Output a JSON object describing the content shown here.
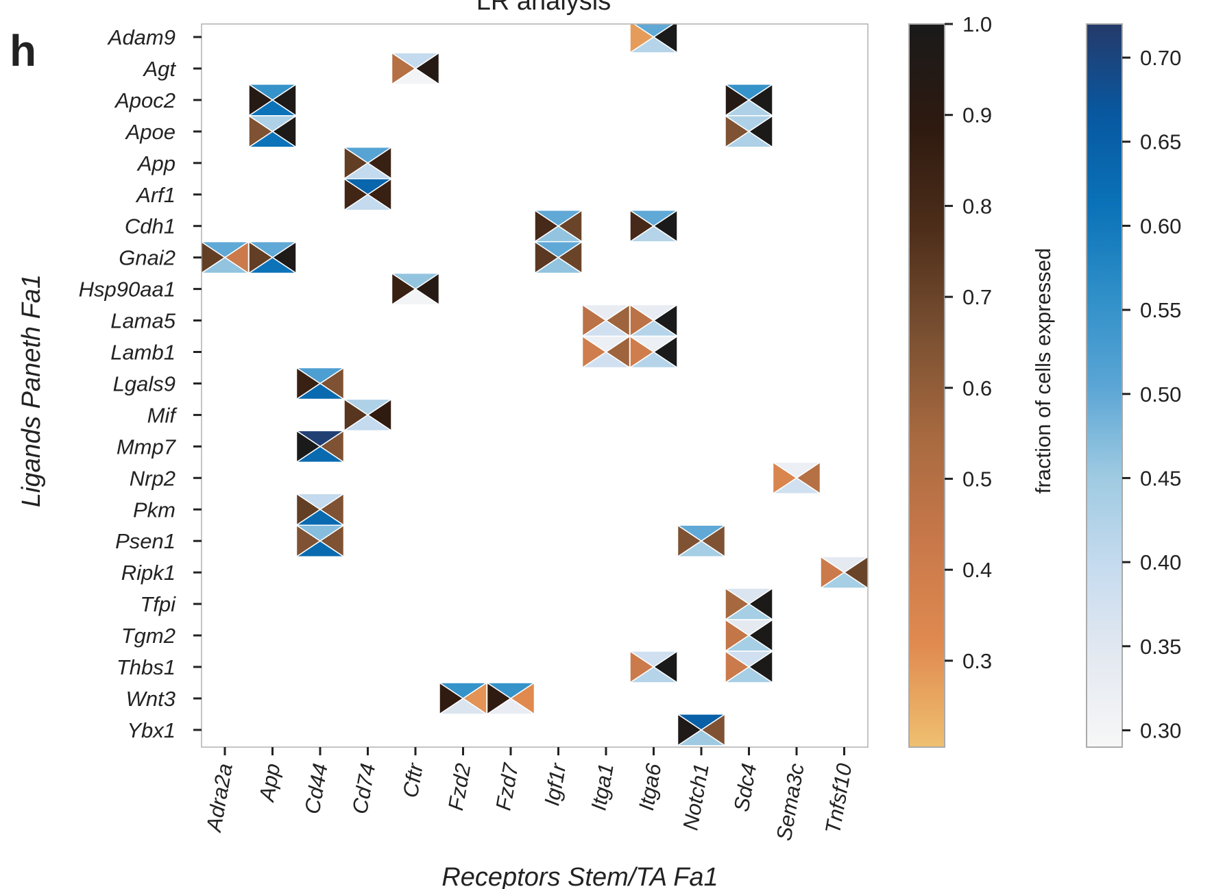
{
  "panel_letter": "h",
  "chart_data": {
    "type": "heatmap",
    "title": "LR analysis",
    "xlabel": "Receptors Stem/TA  Fa1",
    "ylabel": "Ligands Paneth  Fa1",
    "x_categories": [
      "Adra2a",
      "App",
      "Cd44",
      "Cd74",
      "Cftr",
      "Fzd2",
      "Fzd7",
      "Igf1r",
      "Itga1",
      "Itga6",
      "Notch1",
      "Sdc4",
      "Sema3c",
      "Tnfsf10"
    ],
    "y_categories": [
      "Adam9",
      "Agt",
      "Apoc2",
      "Apoe",
      "App",
      "Arf1",
      "Cdh1",
      "Gnai2",
      "Hsp90aa1",
      "Lama5",
      "Lamb1",
      "Lgals9",
      "Mif",
      "Mmp7",
      "Nrp2",
      "Pkm",
      "Psen1",
      "Ripk1",
      "Tfpi",
      "Tgm2",
      "Thbs1",
      "Wnt3",
      "Ybx1"
    ],
    "cell_encoding": {
      "left": "ligand fraction of cells expressed",
      "right": "receptor fraction of cells expressed",
      "top": "blue scale value",
      "bottom": "blue scale value"
    },
    "cells": [
      {
        "ligand": "Adam9",
        "receptor": "Itga6",
        "left": 0.28,
        "right": 1.0,
        "top": 0.5,
        "bottom": 0.42
      },
      {
        "ligand": "Agt",
        "receptor": "Cftr",
        "left": 0.5,
        "right": 0.93,
        "top": 0.4,
        "bottom": 0.3
      },
      {
        "ligand": "Apoc2",
        "receptor": "App",
        "left": 0.93,
        "right": 0.98,
        "top": 0.55,
        "bottom": 0.61
      },
      {
        "ligand": "Apoc2",
        "receptor": "Sdc4",
        "left": 0.93,
        "right": 0.99,
        "top": 0.55,
        "bottom": 0.43
      },
      {
        "ligand": "Apoe",
        "receptor": "App",
        "left": 0.65,
        "right": 0.98,
        "top": 0.43,
        "bottom": 0.61
      },
      {
        "ligand": "Apoe",
        "receptor": "Sdc4",
        "left": 0.65,
        "right": 0.99,
        "top": 0.43,
        "bottom": 0.43
      },
      {
        "ligand": "App",
        "receptor": "Cd74",
        "left": 0.72,
        "right": 0.85,
        "top": 0.51,
        "bottom": 0.4
      },
      {
        "ligand": "Arf1",
        "receptor": "Cd74",
        "left": 0.82,
        "right": 0.85,
        "top": 0.64,
        "bottom": 0.4
      },
      {
        "ligand": "Cdh1",
        "receptor": "Igf1r",
        "left": 0.8,
        "right": 0.7,
        "top": 0.5,
        "bottom": 0.46
      },
      {
        "ligand": "Cdh1",
        "receptor": "Itga6",
        "left": 0.8,
        "right": 1.0,
        "top": 0.5,
        "bottom": 0.42
      },
      {
        "ligand": "Gnai2",
        "receptor": "Adra2a",
        "left": 0.72,
        "right": 0.42,
        "top": 0.5,
        "bottom": 0.46
      },
      {
        "ligand": "Gnai2",
        "receptor": "App",
        "left": 0.72,
        "right": 0.98,
        "top": 0.5,
        "bottom": 0.61
      },
      {
        "ligand": "Gnai2",
        "receptor": "Igf1r",
        "left": 0.74,
        "right": 0.7,
        "top": 0.5,
        "bottom": 0.46
      },
      {
        "ligand": "Hsp90aa1",
        "receptor": "Cftr",
        "left": 0.85,
        "right": 0.93,
        "top": 0.46,
        "bottom": 0.3
      },
      {
        "ligand": "Lama5",
        "receptor": "Itga1",
        "left": 0.48,
        "right": 0.57,
        "top": 0.33,
        "bottom": 0.38
      },
      {
        "ligand": "Lama5",
        "receptor": "Itga6",
        "left": 0.48,
        "right": 1.0,
        "top": 0.33,
        "bottom": 0.42
      },
      {
        "ligand": "Lamb1",
        "receptor": "Itga1",
        "left": 0.4,
        "right": 0.57,
        "top": 0.32,
        "bottom": 0.38
      },
      {
        "ligand": "Lamb1",
        "receptor": "Itga6",
        "left": 0.4,
        "right": 1.0,
        "top": 0.32,
        "bottom": 0.42
      },
      {
        "ligand": "Lgals9",
        "receptor": "Cd44",
        "left": 0.85,
        "right": 0.65,
        "top": 0.52,
        "bottom": 0.63
      },
      {
        "ligand": "Mif",
        "receptor": "Cd74",
        "left": 0.75,
        "right": 0.88,
        "top": 0.43,
        "bottom": 0.4
      },
      {
        "ligand": "Mmp7",
        "receptor": "Cd44",
        "left": 1.0,
        "right": 0.65,
        "top": 0.71,
        "bottom": 0.63
      },
      {
        "ligand": "Nrp2",
        "receptor": "Sema3c",
        "left": 0.35,
        "right": 0.5,
        "top": 0.32,
        "bottom": 0.38
      },
      {
        "ligand": "Pkm",
        "receptor": "Cd44",
        "left": 0.72,
        "right": 0.65,
        "top": 0.4,
        "bottom": 0.63
      },
      {
        "ligand": "Psen1",
        "receptor": "Cd44",
        "left": 0.65,
        "right": 0.65,
        "top": 0.47,
        "bottom": 0.63
      },
      {
        "ligand": "Psen1",
        "receptor": "Notch1",
        "left": 0.65,
        "right": 0.65,
        "top": 0.5,
        "bottom": 0.44
      },
      {
        "ligand": "Ripk1",
        "receptor": "Tnfsf10",
        "left": 0.42,
        "right": 0.7,
        "top": 0.34,
        "bottom": 0.44
      },
      {
        "ligand": "Tfpi",
        "receptor": "Sdc4",
        "left": 0.55,
        "right": 0.99,
        "top": 0.36,
        "bottom": 0.44
      },
      {
        "ligand": "Tgm2",
        "receptor": "Sdc4",
        "left": 0.45,
        "right": 0.99,
        "top": 0.34,
        "bottom": 0.44
      },
      {
        "ligand": "Thbs1",
        "receptor": "Itga6",
        "left": 0.42,
        "right": 1.0,
        "top": 0.38,
        "bottom": 0.42
      },
      {
        "ligand": "Thbs1",
        "receptor": "Sdc4",
        "left": 0.42,
        "right": 0.99,
        "top": 0.38,
        "bottom": 0.44
      },
      {
        "ligand": "Wnt3",
        "receptor": "Fzd2",
        "left": 0.88,
        "right": 0.3,
        "top": 0.55,
        "bottom": 0.36
      },
      {
        "ligand": "Wnt3",
        "receptor": "Fzd7",
        "left": 0.88,
        "right": 0.32,
        "top": 0.55,
        "bottom": 0.33
      },
      {
        "ligand": "Ybx1",
        "receptor": "Notch1",
        "left": 0.97,
        "right": 0.65,
        "top": 0.65,
        "bottom": 0.45
      }
    ],
    "colorbars": [
      {
        "label": "fraction of cells expressed",
        "range": [
          0.205,
          1.0
        ],
        "ticks": [
          "0.3",
          "0.4",
          "0.5",
          "0.6",
          "0.7",
          "0.8",
          "0.9",
          "1.0"
        ],
        "colors": [
          "#efc070",
          "#e08a50",
          "#c8784a",
          "#a86a40",
          "#7a5032",
          "#4e2e1a",
          "#2e1a10",
          "#1a1a1a"
        ]
      },
      {
        "label": "",
        "range": [
          0.29,
          0.72
        ],
        "ticks": [
          "0.30",
          "0.35",
          "0.40",
          "0.45",
          "0.50",
          "0.55",
          "0.60",
          "0.65",
          "0.70"
        ],
        "colors": [
          "#f7f7f7",
          "#e4e9f1",
          "#c6dbef",
          "#9ecae1",
          "#5aa5d5",
          "#2f8fc8",
          "#0a72b8",
          "#0858a0",
          "#253a6a"
        ]
      }
    ],
    "grid": false
  }
}
